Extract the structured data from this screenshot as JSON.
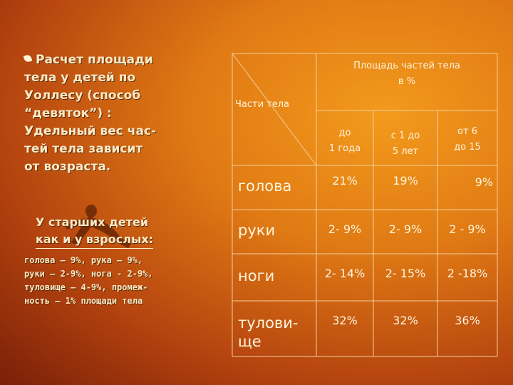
{
  "left": {
    "title_lines": [
      "Расчет площади",
      "тела у детей по",
      "Уоллесу (способ",
      "“девяток”) :",
      "Удельный вес час-",
      "тей тела зависит",
      "от возраста."
    ],
    "subheading_lines": [
      "У старших детей",
      "как и у взрослых:"
    ],
    "body_lines": [
      "голова – 9%,  рука – 9%,",
      "руки –  2-9%,  нога - 2-9%,",
      "туловище – 4-9%, промеж-",
      "ность – 1% площади тела"
    ]
  },
  "table": {
    "header_parts": "Части тела",
    "header_area_line1": "Площадь частей тела",
    "header_area_line2": "в %",
    "col1_line1": "до",
    "col1_line2": "1 года",
    "col2_line1": "с 1 до",
    "col2_line2": "5 лет",
    "col3_line1": "от  6",
    "col3_line2": "до  15",
    "rows": [
      {
        "part": "голова",
        "c1": "21%",
        "c2": "19%",
        "c3": "9%"
      },
      {
        "part": "руки",
        "c1": "2- 9%",
        "c2": "2-  9%",
        "c3": "2 - 9%"
      },
      {
        "part": "ноги",
        "c1": "2- 14%",
        "c2": "2- 15%",
        "c3": "2 -18%"
      },
      {
        "part": "тулови-",
        "part2": "ще",
        "c1": "32%",
        "c2": "32%",
        "c3": "36%"
      }
    ]
  }
}
